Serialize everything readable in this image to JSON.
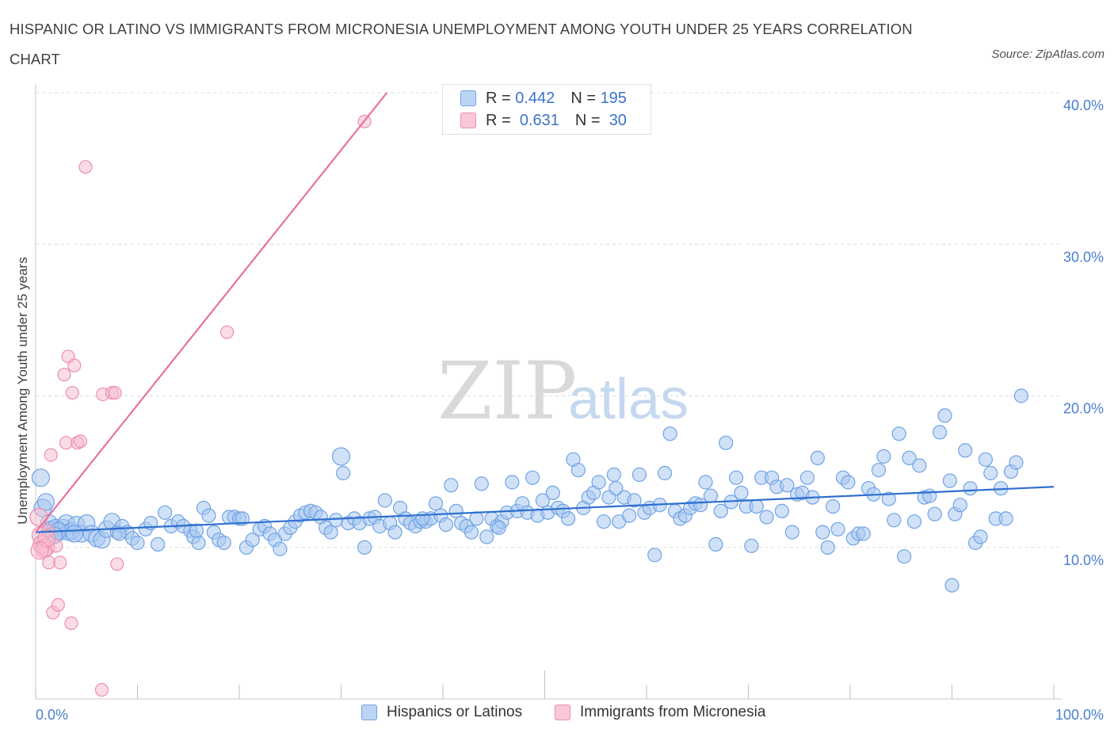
{
  "title": "HISPANIC OR LATINO VS IMMIGRANTS FROM MICRONESIA UNEMPLOYMENT AMONG YOUTH UNDER 25 YEARS CORRELATION CHART",
  "source": "Source: ZipAtlas.com",
  "watermark": {
    "zip": "ZIP",
    "atlas": "atlas"
  },
  "stats": [
    {
      "r_label": "R =",
      "r_value": "0.442",
      "n_label": "N =",
      "n_value": "195",
      "color": "#a9c8f0"
    },
    {
      "r_label": "R =",
      "r_value": "0.631",
      "n_label": "N =",
      "n_value": "30",
      "color": "#f6b9cc"
    }
  ],
  "chart_data": {
    "type": "scatter",
    "title": "HISPANIC OR LATINO VS IMMIGRANTS FROM MICRONESIA UNEMPLOYMENT AMONG YOUTH UNDER 25 YEARS CORRELATION CHART",
    "xlabel": "",
    "ylabel": "Unemployment Among Youth under 25 years",
    "xlim": [
      0,
      100
    ],
    "ylim": [
      0,
      40
    ],
    "x_tick_labels": [
      "0.0%",
      "100.0%"
    ],
    "y_ticks": [
      10,
      20,
      30,
      40
    ],
    "y_tick_labels": [
      "10.0%",
      "20.0%",
      "30.0%",
      "40.0%"
    ],
    "grid": true,
    "legend_position": "bottom",
    "series": [
      {
        "name": "Hispanics or Latinos",
        "color": "#6fa3e6",
        "fill": "#a9c8f0",
        "trend": {
          "x": [
            0,
            100
          ],
          "y": [
            11.0,
            14.0
          ],
          "color": "#2f6fcf"
        },
        "points": [
          [
            0.5,
            14.6
          ],
          [
            0.7,
            12.6
          ],
          [
            1.0,
            13.0
          ],
          [
            1.3,
            11.6
          ],
          [
            1.6,
            11.2
          ],
          [
            2.0,
            11.3
          ],
          [
            2.3,
            11.0
          ],
          [
            2.7,
            11.3
          ],
          [
            3.0,
            11.6
          ],
          [
            3.3,
            11.0
          ],
          [
            3.6,
            11.1
          ],
          [
            4.0,
            11.5
          ],
          [
            4.5,
            10.9
          ],
          [
            5.0,
            11.6
          ],
          [
            5.5,
            10.9
          ],
          [
            6.0,
            10.6
          ],
          [
            6.5,
            10.5
          ],
          [
            7.0,
            11.2
          ],
          [
            7.5,
            11.7
          ],
          [
            8.0,
            11.0
          ],
          [
            8.5,
            11.4
          ],
          [
            9.0,
            11.0
          ],
          [
            9.5,
            10.6
          ],
          [
            10.0,
            10.3
          ],
          [
            10.8,
            11.2
          ],
          [
            11.3,
            11.6
          ],
          [
            12.0,
            10.2
          ],
          [
            12.7,
            12.3
          ],
          [
            13.3,
            11.4
          ],
          [
            14.0,
            11.7
          ],
          [
            14.5,
            11.4
          ],
          [
            15.2,
            11.1
          ],
          [
            15.5,
            10.7
          ],
          [
            16.0,
            10.3
          ],
          [
            16.5,
            12.6
          ],
          [
            17.0,
            12.1
          ],
          [
            17.5,
            11.0
          ],
          [
            18.0,
            10.5
          ],
          [
            18.5,
            10.3
          ],
          [
            19.0,
            12.0
          ],
          [
            19.5,
            12.0
          ],
          [
            20.0,
            11.9
          ],
          [
            20.7,
            10.0
          ],
          [
            21.3,
            10.5
          ],
          [
            22.0,
            11.2
          ],
          [
            22.5,
            11.4
          ],
          [
            23.0,
            10.9
          ],
          [
            23.5,
            10.5
          ],
          [
            24.0,
            9.9
          ],
          [
            24.5,
            10.9
          ],
          [
            25.0,
            11.3
          ],
          [
            25.5,
            11.7
          ],
          [
            26.0,
            12.1
          ],
          [
            26.5,
            12.3
          ],
          [
            27.0,
            12.4
          ],
          [
            27.5,
            12.3
          ],
          [
            28.0,
            12.0
          ],
          [
            28.5,
            11.3
          ],
          [
            29.0,
            11.0
          ],
          [
            29.5,
            11.8
          ],
          [
            30.0,
            16.0
          ],
          [
            30.2,
            14.9
          ],
          [
            30.7,
            11.6
          ],
          [
            31.3,
            11.9
          ],
          [
            31.8,
            11.6
          ],
          [
            32.3,
            10.0
          ],
          [
            32.8,
            11.9
          ],
          [
            33.3,
            12.0
          ],
          [
            33.8,
            11.4
          ],
          [
            34.3,
            13.1
          ],
          [
            34.8,
            11.6
          ],
          [
            35.3,
            11.0
          ],
          [
            35.8,
            12.6
          ],
          [
            36.3,
            11.9
          ],
          [
            36.8,
            11.6
          ],
          [
            37.3,
            11.4
          ],
          [
            37.8,
            11.7
          ],
          [
            38.3,
            11.7
          ],
          [
            38.8,
            11.9
          ],
          [
            39.3,
            12.9
          ],
          [
            39.8,
            12.1
          ],
          [
            40.3,
            11.5
          ],
          [
            40.8,
            14.1
          ],
          [
            41.3,
            12.4
          ],
          [
            41.8,
            11.6
          ],
          [
            42.3,
            11.4
          ],
          [
            42.8,
            11.0
          ],
          [
            43.3,
            11.9
          ],
          [
            43.8,
            14.2
          ],
          [
            44.3,
            10.7
          ],
          [
            44.8,
            11.9
          ],
          [
            45.3,
            11.4
          ],
          [
            45.8,
            11.7
          ],
          [
            46.3,
            12.3
          ],
          [
            46.8,
            14.3
          ],
          [
            47.3,
            12.4
          ],
          [
            47.8,
            12.9
          ],
          [
            48.3,
            12.3
          ],
          [
            48.8,
            14.6
          ],
          [
            49.3,
            12.1
          ],
          [
            49.8,
            13.1
          ],
          [
            50.3,
            12.3
          ],
          [
            50.8,
            13.6
          ],
          [
            51.3,
            12.6
          ],
          [
            51.8,
            12.4
          ],
          [
            52.3,
            11.9
          ],
          [
            52.8,
            15.8
          ],
          [
            53.3,
            15.1
          ],
          [
            53.8,
            12.6
          ],
          [
            54.3,
            13.3
          ],
          [
            54.8,
            13.6
          ],
          [
            55.3,
            14.3
          ],
          [
            55.8,
            11.7
          ],
          [
            56.3,
            13.3
          ],
          [
            56.8,
            14.8
          ],
          [
            57.3,
            11.7
          ],
          [
            57.8,
            13.3
          ],
          [
            58.3,
            12.1
          ],
          [
            58.8,
            13.1
          ],
          [
            59.3,
            14.8
          ],
          [
            59.8,
            12.3
          ],
          [
            60.3,
            12.6
          ],
          [
            60.8,
            9.5
          ],
          [
            61.3,
            12.8
          ],
          [
            61.8,
            14.9
          ],
          [
            62.3,
            17.5
          ],
          [
            62.8,
            12.4
          ],
          [
            63.3,
            11.9
          ],
          [
            63.8,
            12.1
          ],
          [
            64.3,
            12.6
          ],
          [
            64.8,
            12.9
          ],
          [
            65.3,
            12.8
          ],
          [
            65.8,
            14.3
          ],
          [
            66.3,
            13.4
          ],
          [
            66.8,
            10.2
          ],
          [
            67.3,
            12.4
          ],
          [
            67.8,
            16.9
          ],
          [
            68.3,
            13.0
          ],
          [
            68.8,
            14.6
          ],
          [
            69.3,
            13.6
          ],
          [
            69.8,
            12.7
          ],
          [
            70.3,
            10.1
          ],
          [
            70.8,
            12.7
          ],
          [
            71.3,
            14.6
          ],
          [
            71.8,
            12.0
          ],
          [
            72.3,
            14.6
          ],
          [
            72.8,
            14.0
          ],
          [
            73.3,
            12.4
          ],
          [
            73.8,
            14.1
          ],
          [
            74.3,
            11.0
          ],
          [
            74.8,
            13.5
          ],
          [
            75.3,
            13.6
          ],
          [
            75.8,
            14.6
          ],
          [
            76.3,
            13.3
          ],
          [
            76.8,
            15.9
          ],
          [
            77.3,
            11.0
          ],
          [
            77.8,
            10.0
          ],
          [
            78.3,
            12.7
          ],
          [
            78.8,
            11.2
          ],
          [
            79.3,
            14.6
          ],
          [
            79.8,
            14.3
          ],
          [
            80.3,
            10.6
          ],
          [
            80.8,
            10.9
          ],
          [
            81.3,
            10.9
          ],
          [
            81.8,
            13.9
          ],
          [
            82.3,
            13.5
          ],
          [
            82.8,
            15.1
          ],
          [
            83.3,
            16.0
          ],
          [
            83.8,
            13.2
          ],
          [
            84.3,
            11.8
          ],
          [
            84.8,
            17.5
          ],
          [
            85.3,
            9.4
          ],
          [
            85.8,
            15.9
          ],
          [
            86.3,
            11.7
          ],
          [
            86.8,
            15.4
          ],
          [
            87.3,
            13.3
          ],
          [
            87.8,
            13.4
          ],
          [
            88.3,
            12.2
          ],
          [
            88.8,
            17.6
          ],
          [
            89.3,
            18.7
          ],
          [
            89.8,
            14.4
          ],
          [
            90.3,
            12.2
          ],
          [
            90.8,
            12.8
          ],
          [
            91.3,
            16.4
          ],
          [
            91.8,
            13.9
          ],
          [
            92.3,
            10.3
          ],
          [
            92.8,
            10.7
          ],
          [
            93.3,
            15.8
          ],
          [
            93.8,
            14.9
          ],
          [
            94.3,
            11.9
          ],
          [
            94.8,
            13.9
          ],
          [
            95.3,
            11.9
          ],
          [
            95.8,
            15.0
          ],
          [
            96.3,
            15.6
          ],
          [
            96.8,
            20.0
          ],
          [
            90.0,
            7.5
          ],
          [
            57.0,
            13.9
          ],
          [
            45.5,
            11.3
          ],
          [
            38.0,
            11.9
          ],
          [
            20.3,
            11.9
          ],
          [
            15.8,
            11.1
          ],
          [
            8.2,
            10.9
          ],
          [
            2.2,
            11.1
          ],
          [
            1.8,
            10.8
          ],
          [
            3.8,
            10.9
          ]
        ]
      },
      {
        "name": "Immigrants from Micronesia",
        "color": "#ee8fae",
        "fill": "#f6b9cc",
        "trend": {
          "x": [
            0,
            34.5
          ],
          "y": [
            11.0,
            40.0
          ],
          "color": "#e8729a"
        },
        "points": [
          [
            0.3,
            12.0
          ],
          [
            0.5,
            10.8
          ],
          [
            0.6,
            10.2
          ],
          [
            0.8,
            9.9
          ],
          [
            1.0,
            10.0
          ],
          [
            1.2,
            11.1
          ],
          [
            1.3,
            9.0
          ],
          [
            1.5,
            16.1
          ],
          [
            1.7,
            5.7
          ],
          [
            2.0,
            10.1
          ],
          [
            2.2,
            6.2
          ],
          [
            2.4,
            9.0
          ],
          [
            2.8,
            21.4
          ],
          [
            3.0,
            16.9
          ],
          [
            3.2,
            22.6
          ],
          [
            3.5,
            5.0
          ],
          [
            3.6,
            20.2
          ],
          [
            3.8,
            22.0
          ],
          [
            4.1,
            16.9
          ],
          [
            4.4,
            17.0
          ],
          [
            4.9,
            35.1
          ],
          [
            6.5,
            0.6
          ],
          [
            6.6,
            20.1
          ],
          [
            7.5,
            20.2
          ],
          [
            7.8,
            20.2
          ],
          [
            8.0,
            8.9
          ],
          [
            18.8,
            24.2
          ],
          [
            32.3,
            38.1
          ],
          [
            1.1,
            10.6
          ],
          [
            0.4,
            9.8
          ]
        ]
      }
    ]
  },
  "legend": {
    "items": [
      {
        "label": "Hispanics or Latinos",
        "color": "#a9c8f0"
      },
      {
        "label": "Immigrants from Micronesia",
        "color": "#f6b9cc"
      }
    ]
  }
}
